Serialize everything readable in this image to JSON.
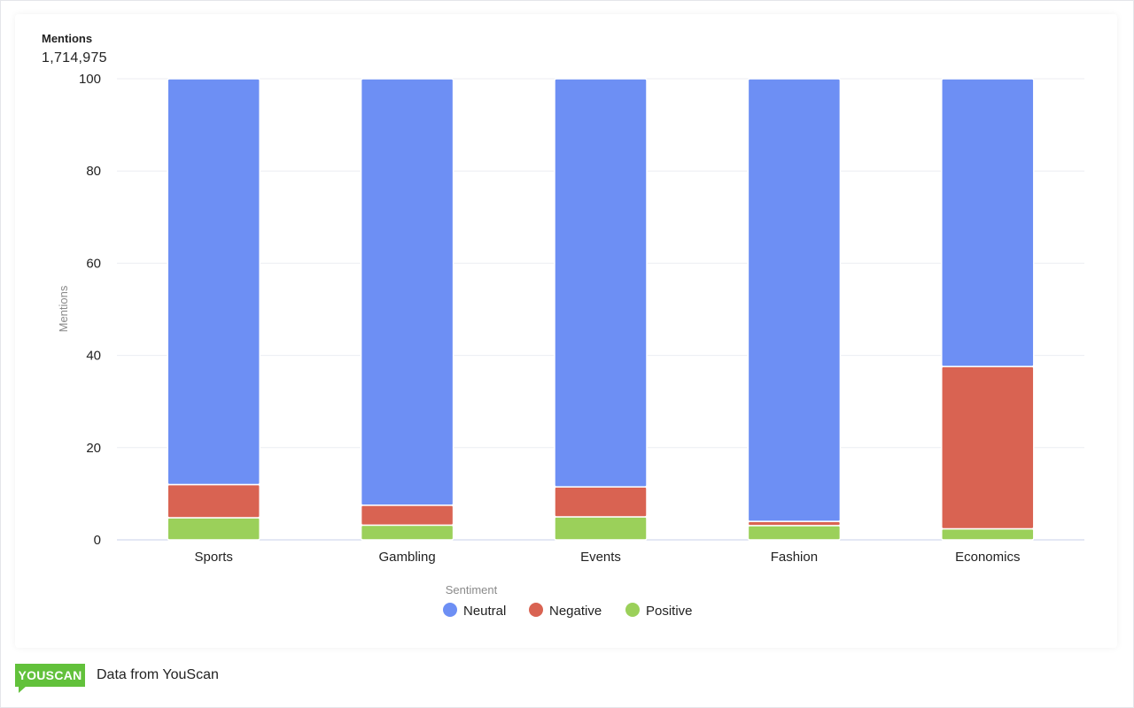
{
  "summary": {
    "label": "Mentions",
    "value": "1,714,975"
  },
  "legend": {
    "title": "Sentiment",
    "items": [
      {
        "name": "Neutral",
        "color": "#6d8ff4"
      },
      {
        "name": "Negative",
        "color": "#d96352"
      },
      {
        "name": "Positive",
        "color": "#9bd05a"
      }
    ]
  },
  "footer": {
    "logo": "YOUSCAN",
    "text": "Data from YouScan"
  },
  "chart_data": {
    "type": "bar",
    "stacked": true,
    "categories": [
      "Sports",
      "Gambling",
      "Events",
      "Fashion",
      "Economics"
    ],
    "series": [
      {
        "name": "Positive",
        "color": "#9bd05a",
        "values": [
          4.8,
          3.2,
          5.0,
          3.1,
          2.4
        ]
      },
      {
        "name": "Negative",
        "color": "#d96352",
        "values": [
          7.2,
          4.3,
          6.5,
          0.9,
          35.2
        ]
      },
      {
        "name": "Neutral",
        "color": "#6d8ff4",
        "values": [
          88.0,
          92.5,
          88.5,
          96.0,
          62.4
        ]
      }
    ],
    "ylabel": "Mentions",
    "xlabel": "",
    "ylim": [
      0,
      100
    ],
    "yticks": [
      0,
      20,
      40,
      60,
      80,
      100
    ],
    "grid": true,
    "legend_position": "bottom"
  }
}
